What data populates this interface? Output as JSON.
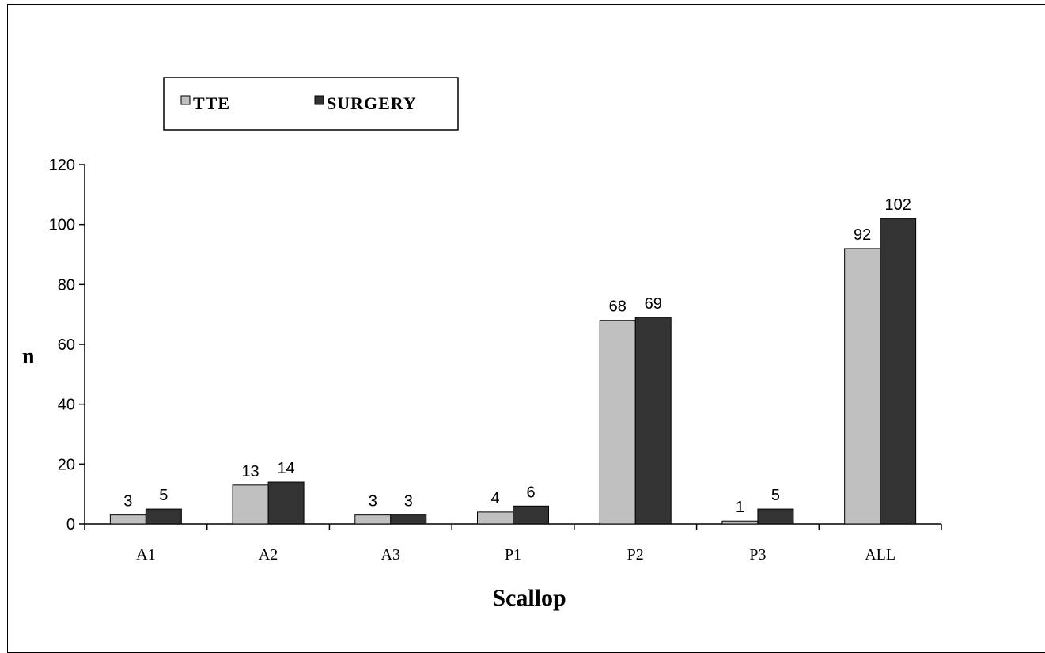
{
  "chart_data": {
    "type": "bar",
    "title": "",
    "xlabel": "Scallop",
    "ylabel": "n",
    "categories": [
      "A1",
      "A2",
      "A3",
      "P1",
      "P2",
      "P3",
      "ALL"
    ],
    "series": [
      {
        "name": "TTE",
        "color": "#c0c0c0",
        "values": [
          3,
          13,
          3,
          4,
          68,
          1,
          92
        ]
      },
      {
        "name": "SURGERY",
        "color": "#333333",
        "values": [
          5,
          14,
          3,
          6,
          69,
          5,
          102
        ]
      }
    ],
    "ylim": [
      0,
      120
    ],
    "yticks": [
      0,
      20,
      40,
      60,
      80,
      100,
      120
    ],
    "data_labels": true,
    "grid": false,
    "legend_position": "top-left"
  }
}
